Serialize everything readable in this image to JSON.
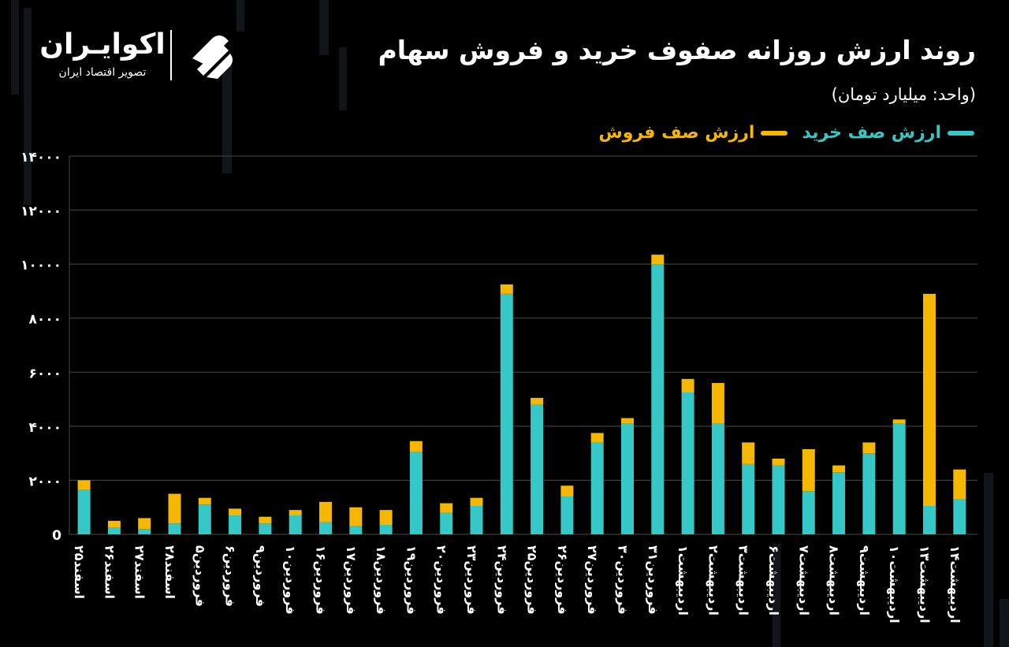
{
  "header": {
    "title": "روند ارزش روزانه صفوف خرید و فروش سهام",
    "unit": "(واحد: میلیارد تومان)"
  },
  "logo": {
    "name": "اکوایـران",
    "tagline": "تصویر اقتصاد ایران",
    "icon": "ekoiran-logo-icon"
  },
  "colors": {
    "buy": "#35c8c6",
    "sell": "#f5b700",
    "grid": "#4a4a4a",
    "text": "#ffffff"
  },
  "chart_data": {
    "type": "bar",
    "stacked": true,
    "title": "روند ارزش روزانه صفوف خرید و فروش سهام",
    "ylabel": "",
    "xlabel": "",
    "ylim": [
      0,
      12000
    ],
    "yticks": [
      0,
      2000,
      4000,
      6000,
      8000,
      10000,
      12000,
      14000
    ],
    "ytick_labels": [
      "0",
      "۲۰۰۰",
      "۴۰۰۰",
      "۶۰۰۰",
      "۸۰۰۰",
      "۱۰۰۰۰",
      "۱۲۰۰۰",
      "۱۴۰۰۰"
    ],
    "grid": true,
    "legend_position": "top-right",
    "categories": [
      "اسفند۲۵",
      "اسفند۲۶",
      "اسفند۲۷",
      "اسفند۲۸",
      "فروردین۵",
      "فروردین۶",
      "فروردین۹",
      "فروردین۱۰",
      "فروردین۱۶",
      "فروردین۱۷",
      "فروردین۱۸",
      "فروردین۱۹",
      "فروردین۲۰",
      "فروردین۲۳",
      "فروردین۲۴",
      "فروردین۲۵",
      "فروردین۲۶",
      "فروردین۲۷",
      "فروردین۳۰",
      "فروردین۳۱",
      "اردیبهشت۱",
      "اردیبهشت۲",
      "اردیبهشت۳",
      "اردیبهشت۶",
      "اردیبهشت۷",
      "اردیبهشت۸",
      "اردیبهشت۹",
      "اردیبهشت۱۰",
      "اردیبهشت۱۳",
      "اردیبهشت۱۴"
    ],
    "series": [
      {
        "name": "ارزش صف خرید",
        "color": "#35c8c6",
        "values": [
          1650,
          250,
          200,
          400,
          1100,
          700,
          400,
          700,
          450,
          300,
          350,
          3050,
          800,
          1050,
          8900,
          4800,
          1400,
          3400,
          4100,
          10000,
          5250,
          4100,
          2600,
          2550,
          1600,
          2300,
          3000,
          4100,
          1050,
          1300
        ]
      },
      {
        "name": "ارزش صف فروش",
        "color": "#f5b700",
        "values": [
          350,
          250,
          400,
          1100,
          250,
          250,
          250,
          200,
          750,
          700,
          550,
          400,
          350,
          300,
          350,
          250,
          400,
          350,
          200,
          350,
          500,
          1500,
          800,
          250,
          1550,
          250,
          400,
          150,
          7850,
          1100
        ]
      }
    ]
  }
}
